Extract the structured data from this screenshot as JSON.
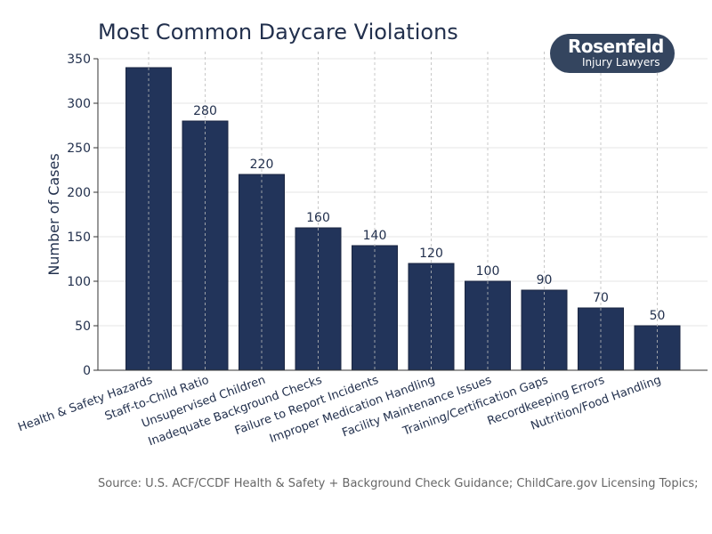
{
  "chart_data": {
    "type": "bar",
    "title": "Most Common Daycare Violations",
    "xlabel": "",
    "ylabel": "Number of Cases",
    "ylim": [
      0,
      350
    ],
    "yticks": [
      0,
      50,
      100,
      150,
      200,
      250,
      300,
      350
    ],
    "grid": true,
    "categories": [
      "Health & Safety Hazards",
      "Staff-to-Child Ratio",
      "Unsupervised Children",
      "Inadequate Background Checks",
      "Failure to Report Incidents",
      "Improper Medication Handling",
      "Facility Maintenance Issues",
      "Training/Certification Gaps",
      "Recordkeeping Errors",
      "Nutrition/Food Handling"
    ],
    "values": [
      340,
      280,
      220,
      160,
      140,
      120,
      100,
      90,
      70,
      50
    ],
    "data_labels": [
      "",
      "280",
      "220",
      "160",
      "140",
      "120",
      "100",
      "90",
      "70",
      "50"
    ],
    "bar_color": "#22345a"
  },
  "source": "Source: U.S. ACF/CCDF Health & Safety + Background Check Guidance; ChildCare.gov Licensing Topics;",
  "logo": {
    "line1": "Rosenfeld",
    "line2": "Injury Lawyers"
  }
}
